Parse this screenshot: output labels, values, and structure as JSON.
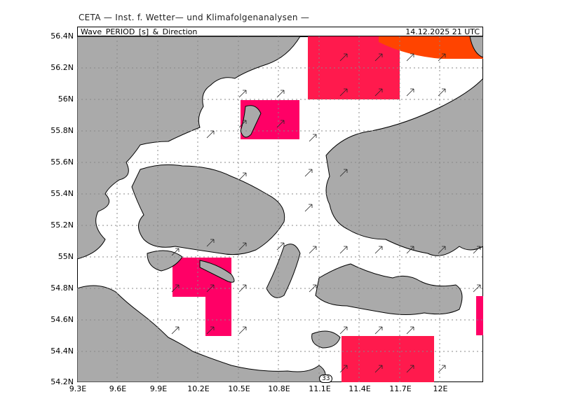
{
  "header": {
    "source": "CETA — Inst. f. Wetter— und Klimafolgenanalysen —",
    "parameter": "Wave_PERIOD_[s]_&_Direction",
    "datetime": "14.12.2025  21 UTC"
  },
  "map": {
    "lat_ticks": [
      "56.4N",
      "56.2N",
      "56N",
      "55.8N",
      "55.6N",
      "55.4N",
      "55.2N",
      "55N",
      "54.8N",
      "54.6N",
      "54.4N",
      "54.2N"
    ],
    "lon_ticks": [
      "9.3E",
      "9.6E",
      "9.9E",
      "10.2E",
      "10.5E",
      "10.8E",
      "11.1E",
      "11.4E",
      "11.7E",
      "12E"
    ],
    "scale_value": "33",
    "colors": {
      "land": "#aaaaaa",
      "sea": "#ffffff",
      "period_high": "#ff4400",
      "period_mid": "#ff1a4d",
      "period_pink": "#ff0066",
      "grid": "#888888"
    },
    "wave_arrows_direction": "north-east"
  }
}
